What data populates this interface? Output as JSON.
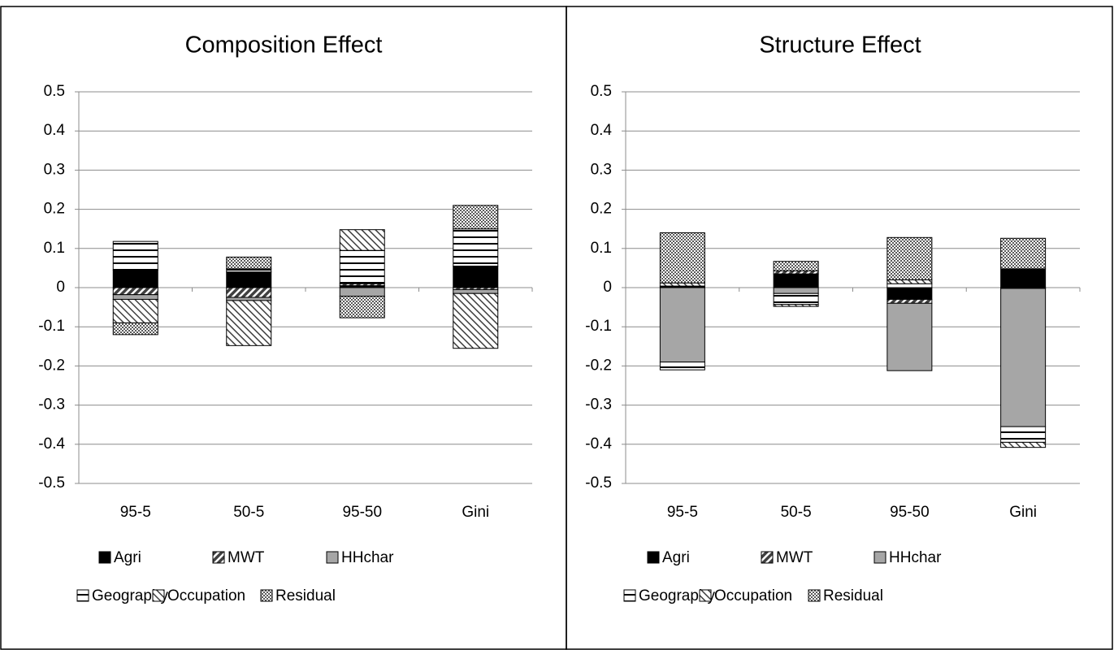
{
  "chart_data": [
    {
      "type": "bar",
      "stacked": true,
      "title": "Composition Effect",
      "categories": [
        "95-5",
        "50-5",
        "95-50",
        "Gini"
      ],
      "ylim": [
        -0.5,
        0.5
      ],
      "yticks": [
        0.5,
        0.4,
        0.3,
        0.2,
        0.1,
        0,
        -0.1,
        -0.2,
        -0.3,
        -0.4,
        -0.5
      ],
      "grid": true,
      "series": [
        {
          "name": "Agri",
          "color": "#000000",
          "values": [
            0.045,
            0.04,
            0.005,
            0.055
          ]
        },
        {
          "name": "MWT",
          "color": "#404040",
          "values": [
            -0.018,
            -0.025,
            0.005,
            -0.005
          ]
        },
        {
          "name": "HHchar",
          "color": "#a6a6a6",
          "values": [
            -0.012,
            -0.008,
            -0.022,
            -0.01
          ]
        },
        {
          "name": "Geography",
          "color": "#000000",
          "values": [
            0.073,
            0.008,
            0.085,
            0.095
          ]
        },
        {
          "name": "Occupation",
          "color": "#404040",
          "values": [
            -0.06,
            -0.115,
            0.053,
            -0.14
          ]
        },
        {
          "name": "Residual",
          "color": "#595959",
          "values": [
            -0.03,
            0.03,
            -0.055,
            0.06
          ]
        }
      ]
    },
    {
      "type": "bar",
      "stacked": true,
      "title": "Structure Effect",
      "categories": [
        "95-5",
        "50-5",
        "95-50",
        "Gini"
      ],
      "ylim": [
        -0.5,
        0.5
      ],
      "yticks": [
        0.5,
        0.4,
        0.3,
        0.2,
        0.1,
        0,
        -0.1,
        -0.2,
        -0.3,
        -0.4,
        -0.5
      ],
      "grid": true,
      "series": [
        {
          "name": "Agri",
          "color": "#000000",
          "values": [
            0.002,
            0.035,
            -0.03,
            0.048
          ]
        },
        {
          "name": "MWT",
          "color": "#404040",
          "values": [
            0.002,
            0.008,
            -0.01,
            -0.002
          ]
        },
        {
          "name": "HHchar",
          "color": "#a6a6a6",
          "values": [
            -0.19,
            -0.015,
            -0.172,
            -0.353
          ]
        },
        {
          "name": "Geography",
          "color": "#000000",
          "values": [
            -0.02,
            -0.028,
            0.01,
            -0.04
          ]
        },
        {
          "name": "Occupation",
          "color": "#404040",
          "values": [
            0.008,
            -0.005,
            0.01,
            -0.013
          ]
        },
        {
          "name": "Residual",
          "color": "#595959",
          "values": [
            0.128,
            0.024,
            0.108,
            0.078
          ]
        }
      ]
    }
  ]
}
